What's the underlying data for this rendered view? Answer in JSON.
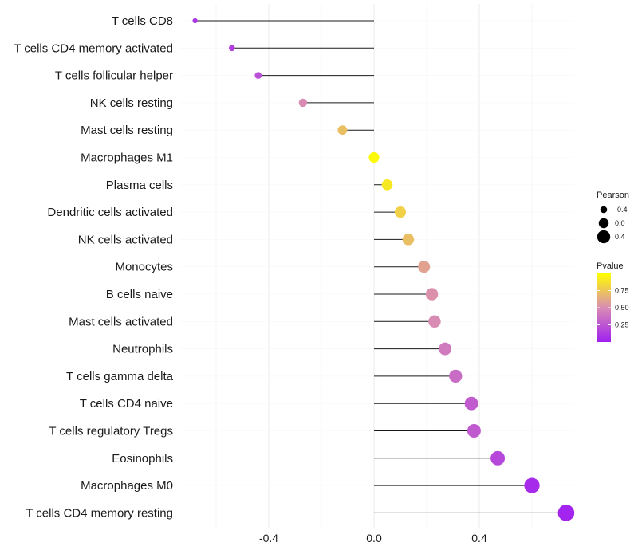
{
  "chart_data": {
    "type": "lollipop",
    "title": "",
    "xlabel": "",
    "ylabel": "",
    "xlim": [
      -0.7,
      0.73
    ],
    "x_ticks": [
      -0.4,
      0.0,
      0.4
    ],
    "x_tick_labels": [
      "-0.4",
      "0.0",
      "0.4"
    ],
    "categories": [
      "T cells CD8",
      "T cells CD4 memory activated",
      "T cells follicular helper",
      "NK cells resting",
      "Mast cells resting",
      "Macrophages M1",
      "Plasma cells",
      "Dendritic cells activated",
      "NK cells activated",
      "Monocytes",
      "B cells naive",
      "Mast cells activated",
      "Neutrophils",
      "T cells gamma delta",
      "T cells CD4 naive",
      "T cells regulatory  Tregs ",
      "Eosinophils",
      "Macrophages M0",
      "T cells CD4 memory resting"
    ],
    "pearson": [
      -0.68,
      -0.54,
      -0.44,
      -0.27,
      -0.12,
      0.0,
      0.05,
      0.1,
      0.13,
      0.19,
      0.22,
      0.23,
      0.27,
      0.31,
      0.37,
      0.38,
      0.47,
      0.6,
      0.73
    ],
    "pvalue": [
      0.1,
      0.15,
      0.22,
      0.5,
      0.72,
      0.98,
      0.9,
      0.8,
      0.72,
      0.6,
      0.52,
      0.5,
      0.42,
      0.35,
      0.28,
      0.27,
      0.18,
      0.05,
      0.02
    ],
    "legend": {
      "size_title": "Pearson",
      "size_labels": [
        "-0.4",
        "0.0",
        "0.4"
      ],
      "size_values": [
        -0.4,
        0.0,
        0.4
      ],
      "color_title": "Pvalue",
      "color_labels": [
        "0.75",
        "0.50",
        "0.25"
      ],
      "color_values": [
        0.75,
        0.5,
        0.25
      ],
      "color_low": "#a020f0",
      "color_mid": "#d98cb3",
      "color_high": "#ffff00",
      "placement": "right"
    }
  }
}
